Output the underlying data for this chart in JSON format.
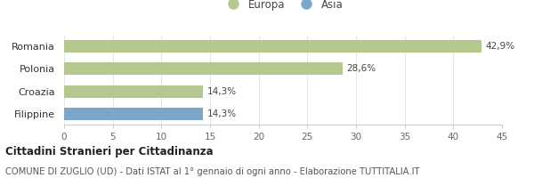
{
  "categories": [
    "Romania",
    "Polonia",
    "Croazia",
    "Filippine"
  ],
  "values": [
    42.9,
    28.6,
    14.3,
    14.3
  ],
  "colors": [
    "#b5c98e",
    "#b5c98e",
    "#b5c98e",
    "#7ba7c9"
  ],
  "bar_labels": [
    "42,9%",
    "28,6%",
    "14,3%",
    "14,3%"
  ],
  "xlim": [
    0,
    45
  ],
  "xticks": [
    0,
    5,
    10,
    15,
    20,
    25,
    30,
    35,
    40,
    45
  ],
  "legend_items": [
    {
      "label": "Europa",
      "color": "#b5c98e"
    },
    {
      "label": "Asia",
      "color": "#7ba7c9"
    }
  ],
  "title_bold": "Cittadini Stranieri per Cittadinanza",
  "subtitle": "COMUNE DI ZUGLIO (UD) - Dati ISTAT al 1° gennaio di ogni anno - Elaborazione TUTTITALIA.IT",
  "background_color": "#ffffff",
  "bar_height": 0.55,
  "figsize": [
    6.0,
    2.0
  ],
  "dpi": 100
}
